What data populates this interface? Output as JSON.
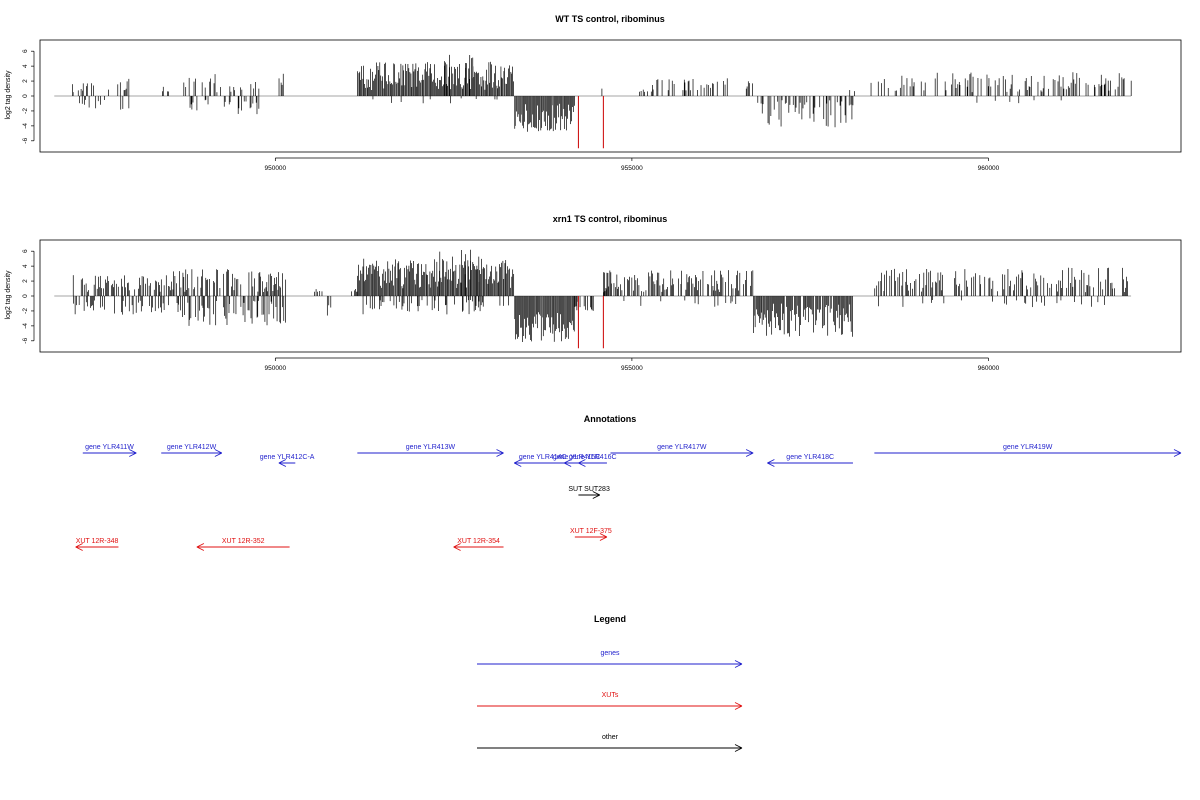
{
  "colors": {
    "bars": "#000000",
    "highlight": "#cc0000",
    "baseline": "#888888",
    "genes": "#1f1fcc",
    "xuts": "#e01010",
    "other": "#000000"
  },
  "chart_data": [
    {
      "type": "bar",
      "title": "WT TS control, ribominus",
      "xlabel": "",
      "ylabel": "log2 tag density",
      "xlim": [
        946700,
        962700
      ],
      "ylim": [
        -7.5,
        7.5
      ],
      "x_ticks": [
        950000,
        955000,
        960000
      ],
      "x_tick_labels": [
        "950000",
        "955000",
        "960000"
      ],
      "y_ticks": [
        6,
        4,
        2,
        0,
        -2,
        -4,
        -6
      ],
      "y_tick_labels": [
        "6",
        "4",
        "2",
        "0",
        "-2",
        "-4",
        "-6"
      ],
      "grid": false,
      "baseline_range": [
        946900,
        962000
      ],
      "highlight_markers": [
        {
          "x": 954250,
          "y": -7
        },
        {
          "x": 954600,
          "y": -7
        }
      ],
      "regions": [
        {
          "start": 947150,
          "end": 947450,
          "height": 1.8,
          "prob": 0.35,
          "min": 0.5
        },
        {
          "start": 947650,
          "end": 947950,
          "height": 2.5,
          "prob": 0.3,
          "min": 0.5
        },
        {
          "start": 947150,
          "end": 947600,
          "height": -2.0,
          "prob": 0.3,
          "min": 0.5
        },
        {
          "start": 947800,
          "end": 948000,
          "height": -2.0,
          "prob": 0.3,
          "min": 0.5
        },
        {
          "start": 948400,
          "end": 948500,
          "height": 1.5,
          "prob": 0.5,
          "min": 0.5
        },
        {
          "start": 948700,
          "end": 949300,
          "height": 3.0,
          "prob": 0.35,
          "min": 0.5
        },
        {
          "start": 948800,
          "end": 949100,
          "height": -2.0,
          "prob": 0.3,
          "min": 0.5
        },
        {
          "start": 949300,
          "end": 949850,
          "height": 2.0,
          "prob": 0.25,
          "min": 0.5
        },
        {
          "start": 949250,
          "end": 949800,
          "height": -2.5,
          "prob": 0.35,
          "min": 0.5
        },
        {
          "start": 950050,
          "end": 950150,
          "height": 3.0,
          "prob": 0.6,
          "min": 1.0
        },
        {
          "start": 951150,
          "end": 953350,
          "height": 4.6,
          "prob": 1.0,
          "min": 0.8
        },
        {
          "start": 952300,
          "end": 952900,
          "height": 5.6,
          "prob": 0.15,
          "min": 3.5
        },
        {
          "start": 951200,
          "end": 953300,
          "height": -1.0,
          "prob": 0.05,
          "min": 0.3
        },
        {
          "start": 953350,
          "end": 954200,
          "height": -4.8,
          "prob": 1.0,
          "min": 1.0
        },
        {
          "start": 954550,
          "end": 954650,
          "height": 1.0,
          "prob": 0.3,
          "min": 0.5
        },
        {
          "start": 955100,
          "end": 955300,
          "height": 1.5,
          "prob": 0.5,
          "min": 0.5
        },
        {
          "start": 955350,
          "end": 956400,
          "height": 2.4,
          "prob": 0.35,
          "min": 0.5
        },
        {
          "start": 956600,
          "end": 956700,
          "height": 2.0,
          "prob": 0.4,
          "min": 0.5
        },
        {
          "start": 956750,
          "end": 958100,
          "height": -4.2,
          "prob": 0.5,
          "min": 0.5
        },
        {
          "start": 958050,
          "end": 958200,
          "height": 1.0,
          "prob": 0.3,
          "min": 0.5
        },
        {
          "start": 958350,
          "end": 962000,
          "height": 3.2,
          "prob": 0.4,
          "min": 0.5
        },
        {
          "start": 959400,
          "end": 961200,
          "height": -1.5,
          "prob": 0.05,
          "min": 0.5
        }
      ]
    },
    {
      "type": "bar",
      "title": "xrn1 TS control, ribominus",
      "xlabel": "",
      "ylabel": "log2 tag density",
      "xlim": [
        946700,
        962700
      ],
      "ylim": [
        -7.5,
        7.5
      ],
      "x_ticks": [
        950000,
        955000,
        960000
      ],
      "x_tick_labels": [
        "950000",
        "955000",
        "960000"
      ],
      "y_ticks": [
        6,
        4,
        2,
        0,
        -2,
        -4,
        -6
      ],
      "y_tick_labels": [
        "6",
        "4",
        "2",
        "0",
        "-2",
        "-4",
        "-6"
      ],
      "grid": false,
      "baseline_range": [
        946900,
        962000
      ],
      "highlight_markers": [
        {
          "x": 954250,
          "y": -7
        },
        {
          "x": 954600,
          "y": -7
        }
      ],
      "regions": [
        {
          "start": 947150,
          "end": 948500,
          "height": 2.8,
          "prob": 0.5,
          "min": 0.5
        },
        {
          "start": 947150,
          "end": 948500,
          "height": -2.5,
          "prob": 0.4,
          "min": 0.5
        },
        {
          "start": 948500,
          "end": 950150,
          "height": 3.6,
          "prob": 0.6,
          "min": 0.5
        },
        {
          "start": 948600,
          "end": 950150,
          "height": -4.0,
          "prob": 0.55,
          "min": 0.5
        },
        {
          "start": 950550,
          "end": 950650,
          "height": 1.0,
          "prob": 0.5,
          "min": 0.5
        },
        {
          "start": 950700,
          "end": 950800,
          "height": -3.0,
          "prob": 0.6,
          "min": 1.0
        },
        {
          "start": 951050,
          "end": 951150,
          "height": 1.0,
          "prob": 0.5,
          "min": 0.5
        },
        {
          "start": 951150,
          "end": 953350,
          "height": 5.0,
          "prob": 1.0,
          "min": 1.0
        },
        {
          "start": 952300,
          "end": 953000,
          "height": 6.5,
          "prob": 0.12,
          "min": 4.0
        },
        {
          "start": 951200,
          "end": 953300,
          "height": -2.5,
          "prob": 0.35,
          "min": 0.5
        },
        {
          "start": 953350,
          "end": 954200,
          "height": -6.2,
          "prob": 1.0,
          "min": 2.0
        },
        {
          "start": 954200,
          "end": 954500,
          "height": -2.0,
          "prob": 0.4,
          "min": 0.5
        },
        {
          "start": 954600,
          "end": 954700,
          "height": 1.5,
          "prob": 0.5,
          "min": 0.5
        },
        {
          "start": 954600,
          "end": 956700,
          "height": 3.5,
          "prob": 0.6,
          "min": 0.5
        },
        {
          "start": 954800,
          "end": 956600,
          "height": -1.5,
          "prob": 0.12,
          "min": 0.5
        },
        {
          "start": 956700,
          "end": 958100,
          "height": -5.5,
          "prob": 0.95,
          "min": 1.0
        },
        {
          "start": 958400,
          "end": 962000,
          "height": 3.8,
          "prob": 0.5,
          "min": 0.5
        },
        {
          "start": 958400,
          "end": 962000,
          "height": -1.5,
          "prob": 0.08,
          "min": 0.5
        }
      ]
    }
  ],
  "annotations": {
    "title": "Annotations",
    "features": [
      {
        "label": "gene YLR411W",
        "class": "genes",
        "start": 947300,
        "end": 948050,
        "strand": "+",
        "row": 0
      },
      {
        "label": "gene YLR412W",
        "class": "genes",
        "start": 948400,
        "end": 949250,
        "strand": "+",
        "row": 0
      },
      {
        "label": "gene YLR412C-A",
        "class": "genes",
        "start": 950050,
        "end": 950280,
        "strand": "-",
        "row": 1
      },
      {
        "label": "gene YLR413W",
        "class": "genes",
        "start": 951150,
        "end": 953200,
        "strand": "+",
        "row": 0
      },
      {
        "label": "gene YLR414C",
        "class": "genes",
        "start": 953350,
        "end": 954150,
        "strand": "-",
        "row": 1
      },
      {
        "label": "gene YLR415C",
        "class": "genes",
        "start": 954050,
        "end": 954400,
        "strand": "-",
        "row": 1
      },
      {
        "label": "gene YLR416C",
        "class": "genes",
        "start": 954250,
        "end": 954650,
        "strand": "-",
        "row": 1
      },
      {
        "label": "gene YLR417W",
        "class": "genes",
        "start": 954700,
        "end": 956700,
        "strand": "+",
        "row": 0
      },
      {
        "label": "gene YLR418C",
        "class": "genes",
        "start": 956900,
        "end": 958100,
        "strand": "-",
        "row": 1
      },
      {
        "label": "gene YLR419W",
        "class": "genes",
        "start": 958400,
        "end": 962700,
        "strand": "+",
        "row": 0
      },
      {
        "label": "SUT SUT283",
        "class": "other",
        "start": 954250,
        "end": 954550,
        "strand": "+",
        "row": 2
      },
      {
        "label": "XUT 12F-375",
        "class": "xuts",
        "start": 954200,
        "end": 954650,
        "strand": "+",
        "row": 3
      },
      {
        "label": "XUT 12R-348",
        "class": "xuts",
        "start": 947200,
        "end": 947800,
        "strand": "-",
        "row": 4
      },
      {
        "label": "XUT 12R-352",
        "class": "xuts",
        "start": 948900,
        "end": 950200,
        "strand": "-",
        "row": 4
      },
      {
        "label": "XUT 12R-354",
        "class": "xuts",
        "start": 952500,
        "end": 953200,
        "strand": "-",
        "row": 4
      }
    ]
  },
  "legend": {
    "title": "Legend",
    "items": [
      {
        "label": "genes",
        "class": "genes"
      },
      {
        "label": "XUTs",
        "class": "xuts"
      },
      {
        "label": "other",
        "class": "other"
      }
    ]
  }
}
